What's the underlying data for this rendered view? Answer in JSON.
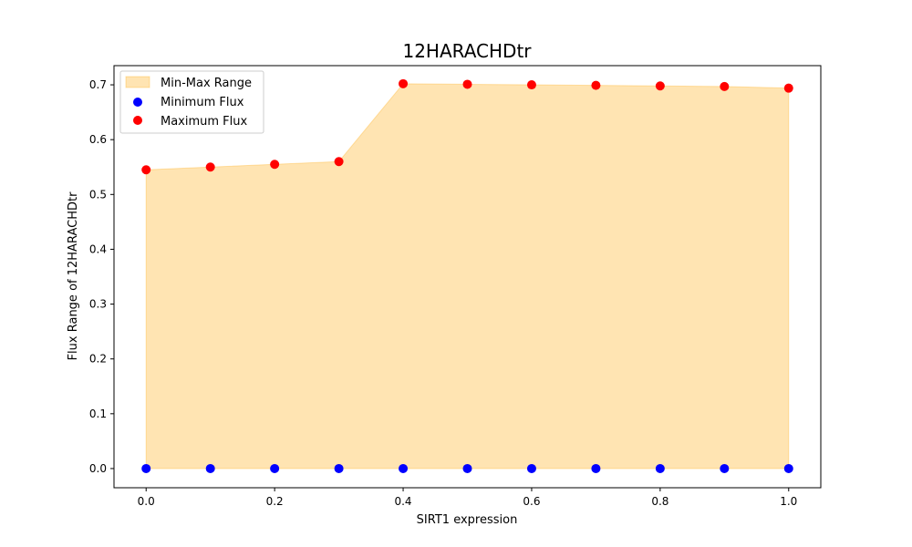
{
  "chart_data": {
    "type": "scatter",
    "title": "12HARACHDtr",
    "xlabel": "SIRT1 expression",
    "ylabel": "Flux Range of 12HARACHDtr",
    "x": [
      0.0,
      0.1,
      0.2,
      0.3,
      0.4,
      0.5,
      0.6,
      0.7,
      0.8,
      0.9,
      1.0
    ],
    "series": [
      {
        "name": "Minimum Flux",
        "kind": "points",
        "color": "#0000ff",
        "values": [
          0,
          0,
          0,
          0,
          0,
          0,
          0,
          0,
          0,
          0,
          0
        ]
      },
      {
        "name": "Maximum Flux",
        "kind": "points",
        "color": "#ff0000",
        "values": [
          0.545,
          0.55,
          0.555,
          0.56,
          0.702,
          0.701,
          0.7,
          0.699,
          0.698,
          0.697,
          0.694
        ]
      }
    ],
    "fill_between": {
      "name": "Min-Max Range",
      "color": "#ffa500",
      "opacity": 0.3
    },
    "xlim": [
      -0.05,
      1.05
    ],
    "ylim": [
      -0.035,
      0.735
    ],
    "xticks": [
      0.0,
      0.2,
      0.4,
      0.6,
      0.8,
      1.0
    ],
    "xtick_labels": [
      "0.0",
      "0.2",
      "0.4",
      "0.6",
      "0.8",
      "1.0"
    ],
    "yticks": [
      0.0,
      0.1,
      0.2,
      0.3,
      0.4,
      0.5,
      0.6,
      0.7
    ],
    "ytick_labels": [
      "0.0",
      "0.1",
      "0.2",
      "0.3",
      "0.4",
      "0.5",
      "0.6",
      "0.7"
    ],
    "legend": {
      "position": "top-left",
      "entries": [
        "Min-Max Range",
        "Minimum Flux",
        "Maximum Flux"
      ]
    },
    "grid": false
  }
}
